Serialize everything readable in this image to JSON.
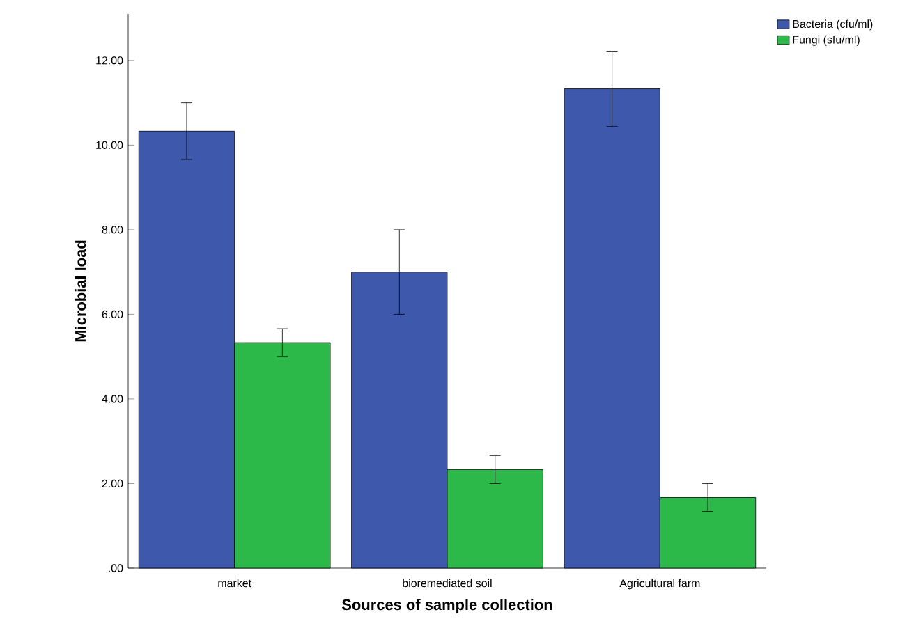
{
  "chart_data": {
    "type": "bar",
    "xlabel": "Sources of sample collection",
    "ylabel": "Microbial load",
    "categories": [
      "market",
      "bioremediated soil",
      "Agricultural farm"
    ],
    "series": [
      {
        "name": "Bacteria (cfu/ml)",
        "color": "#3e58ac",
        "values": [
          10.33,
          7.0,
          11.33
        ],
        "errors": [
          0.67,
          1.0,
          0.89
        ]
      },
      {
        "name": "Fungi (sfu/ml)",
        "color": "#2db84a",
        "values": [
          5.33,
          2.33,
          1.67
        ],
        "errors": [
          0.33,
          0.33,
          0.33
        ]
      }
    ],
    "ylim": [
      0,
      13.1
    ],
    "yticks": [
      {
        "value": 0,
        "label": ".00"
      },
      {
        "value": 2,
        "label": "2.00"
      },
      {
        "value": 4,
        "label": "4.00"
      },
      {
        "value": 6,
        "label": "6.00"
      },
      {
        "value": 8,
        "label": "8.00"
      },
      {
        "value": 10,
        "label": "10.00"
      },
      {
        "value": 12,
        "label": "12.00"
      }
    ],
    "legend": "top right"
  }
}
